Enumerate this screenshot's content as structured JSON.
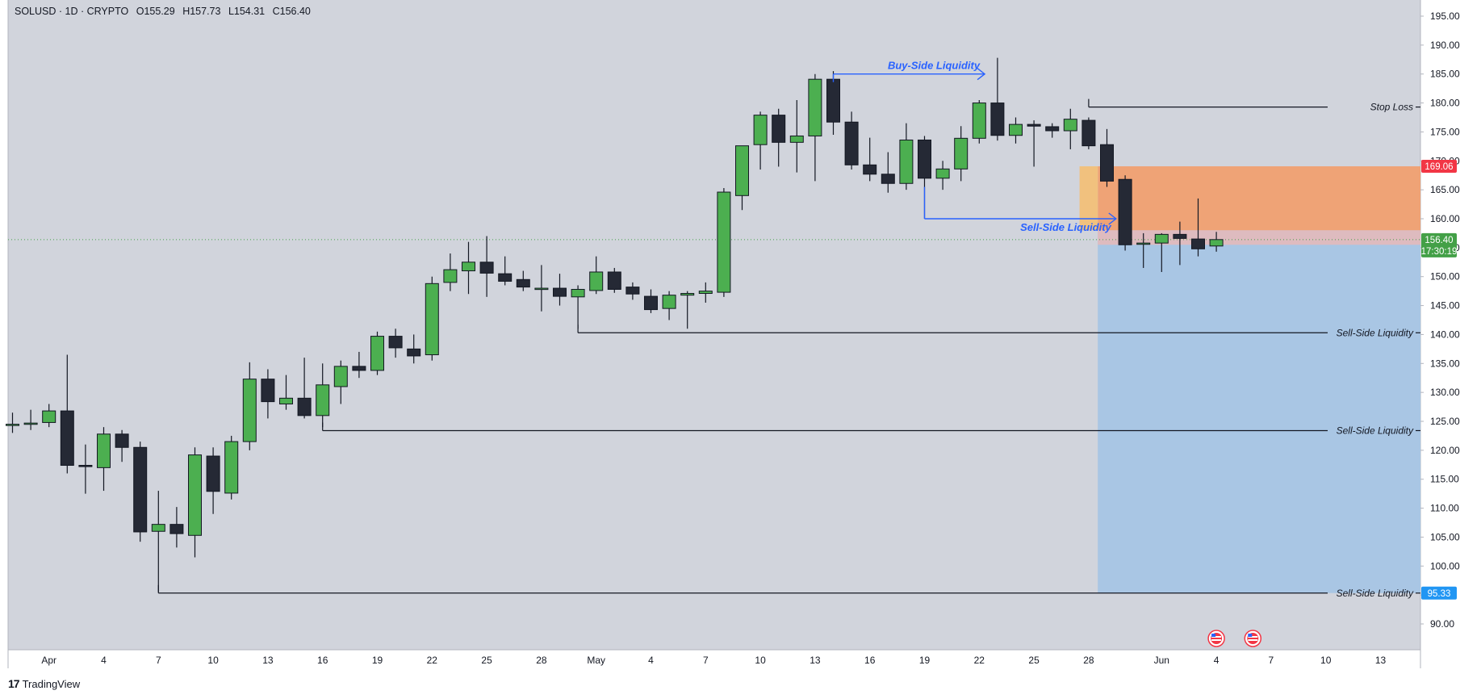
{
  "header": {
    "symbol": "SOLUSD · 1D · CRYPTO",
    "open": "O155.29",
    "high": "H157.73",
    "low": "L154.31",
    "close": "C156.40"
  },
  "footer": {
    "brand": "TradingView",
    "logo": "17"
  },
  "colors": {
    "background": "#d1d4dc",
    "up": "#4caf50",
    "down": "#252935",
    "liquidity_text": "#2962ff",
    "stop_label": "#f23645",
    "target_label": "#2196f3",
    "last_price_label": "#43a047",
    "stop_zone": "#f0a070",
    "entry_zone": "#f2c078",
    "target_zone": "#a9c6e4"
  },
  "chart_data": {
    "type": "candlestick",
    "symbol": "SOLUSD",
    "interval": "1D",
    "exchange": "CRYPTO",
    "ylim": [
      86.7,
      198.4
    ],
    "y_ticks": [
      90,
      95,
      100,
      105,
      110,
      115,
      120,
      125,
      130,
      135,
      140,
      145,
      150,
      155,
      160,
      165,
      170,
      175,
      180,
      185,
      190,
      195
    ],
    "y_tick_labels": [
      "90.00",
      "95.00",
      "100.00",
      "105.00",
      "110.00",
      "115.00",
      "120.00",
      "125.00",
      "130.00",
      "135.00",
      "140.00",
      "145.00",
      "150.00",
      "155.00",
      "160.00",
      "165.00",
      "170.00",
      "175.00",
      "180.00",
      "185.00",
      "190.00",
      "195.00"
    ],
    "x_ticks": [
      {
        "label": "Apr",
        "i": 2
      },
      {
        "label": "4",
        "i": 5
      },
      {
        "label": "7",
        "i": 8
      },
      {
        "label": "10",
        "i": 11
      },
      {
        "label": "13",
        "i": 14
      },
      {
        "label": "16",
        "i": 17
      },
      {
        "label": "19",
        "i": 20
      },
      {
        "label": "22",
        "i": 23
      },
      {
        "label": "25",
        "i": 26
      },
      {
        "label": "28",
        "i": 29
      },
      {
        "label": "May",
        "i": 32
      },
      {
        "label": "4",
        "i": 35
      },
      {
        "label": "7",
        "i": 38
      },
      {
        "label": "10",
        "i": 41
      },
      {
        "label": "13",
        "i": 44
      },
      {
        "label": "16",
        "i": 47
      },
      {
        "label": "19",
        "i": 50
      },
      {
        "label": "22",
        "i": 53
      },
      {
        "label": "25",
        "i": 56
      },
      {
        "label": "28",
        "i": 59
      },
      {
        "label": "Jun",
        "i": 63
      },
      {
        "label": "4",
        "i": 66
      },
      {
        "label": "7",
        "i": 69
      },
      {
        "label": "10",
        "i": 72
      },
      {
        "label": "13",
        "i": 75
      }
    ],
    "candles": [
      {
        "o": 124.5,
        "h": 126.5,
        "l": 123.0,
        "c": 124.5
      },
      {
        "o": 124.5,
        "h": 127.0,
        "l": 123.5,
        "c": 124.7
      },
      {
        "o": 124.8,
        "h": 128.0,
        "l": 124.0,
        "c": 126.8
      },
      {
        "o": 126.8,
        "h": 136.5,
        "l": 116.0,
        "c": 117.4
      },
      {
        "o": 117.4,
        "h": 121.0,
        "l": 112.5,
        "c": 117.3
      },
      {
        "o": 117.0,
        "h": 124.0,
        "l": 113.0,
        "c": 122.8
      },
      {
        "o": 122.8,
        "h": 123.5,
        "l": 118.0,
        "c": 120.5
      },
      {
        "o": 120.5,
        "h": 121.5,
        "l": 104.2,
        "c": 105.9
      },
      {
        "o": 106.0,
        "h": 113.0,
        "l": 95.5,
        "c": 107.2
      },
      {
        "o": 107.2,
        "h": 110.2,
        "l": 103.2,
        "c": 105.6
      },
      {
        "o": 105.3,
        "h": 120.5,
        "l": 101.5,
        "c": 119.2
      },
      {
        "o": 119.0,
        "h": 120.5,
        "l": 109.0,
        "c": 112.9
      },
      {
        "o": 112.6,
        "h": 122.5,
        "l": 111.5,
        "c": 121.5
      },
      {
        "o": 121.5,
        "h": 135.2,
        "l": 120.0,
        "c": 132.3
      },
      {
        "o": 132.3,
        "h": 134.0,
        "l": 125.5,
        "c": 128.4
      },
      {
        "o": 128.0,
        "h": 133.0,
        "l": 127.0,
        "c": 129.0
      },
      {
        "o": 129.0,
        "h": 136.0,
        "l": 125.5,
        "c": 126.0
      },
      {
        "o": 126.0,
        "h": 135.0,
        "l": 124.0,
        "c": 131.3
      },
      {
        "o": 131.0,
        "h": 135.5,
        "l": 128.0,
        "c": 134.5
      },
      {
        "o": 134.5,
        "h": 137.0,
        "l": 132.5,
        "c": 133.8
      },
      {
        "o": 133.8,
        "h": 140.5,
        "l": 133.0,
        "c": 139.7
      },
      {
        "o": 139.7,
        "h": 141.0,
        "l": 136.0,
        "c": 137.7
      },
      {
        "o": 137.5,
        "h": 140.0,
        "l": 135.0,
        "c": 136.3
      },
      {
        "o": 136.5,
        "h": 150.0,
        "l": 135.5,
        "c": 148.8
      },
      {
        "o": 149.0,
        "h": 154.0,
        "l": 147.5,
        "c": 151.2
      },
      {
        "o": 151.0,
        "h": 156.0,
        "l": 147.0,
        "c": 152.5
      },
      {
        "o": 152.5,
        "h": 157.0,
        "l": 146.5,
        "c": 150.6
      },
      {
        "o": 150.5,
        "h": 153.5,
        "l": 148.5,
        "c": 149.2
      },
      {
        "o": 149.5,
        "h": 151.0,
        "l": 147.5,
        "c": 148.2
      },
      {
        "o": 148.0,
        "h": 152.0,
        "l": 144.0,
        "c": 148.0
      },
      {
        "o": 148.0,
        "h": 150.5,
        "l": 145.0,
        "c": 146.6
      },
      {
        "o": 146.5,
        "h": 148.5,
        "l": 141.0,
        "c": 147.8
      },
      {
        "o": 147.6,
        "h": 153.5,
        "l": 147.0,
        "c": 150.8
      },
      {
        "o": 150.8,
        "h": 151.5,
        "l": 147.2,
        "c": 147.8
      },
      {
        "o": 148.2,
        "h": 149.0,
        "l": 146.0,
        "c": 147.0
      },
      {
        "o": 146.6,
        "h": 147.8,
        "l": 143.7,
        "c": 144.3
      },
      {
        "o": 144.5,
        "h": 147.5,
        "l": 142.5,
        "c": 146.8
      },
      {
        "o": 146.8,
        "h": 147.5,
        "l": 141.0,
        "c": 147.1
      },
      {
        "o": 147.1,
        "h": 149.0,
        "l": 145.5,
        "c": 147.5
      },
      {
        "o": 147.3,
        "h": 165.3,
        "l": 146.5,
        "c": 164.6
      },
      {
        "o": 164.0,
        "h": 172.5,
        "l": 161.5,
        "c": 172.6
      },
      {
        "o": 172.8,
        "h": 178.5,
        "l": 168.5,
        "c": 177.9
      },
      {
        "o": 177.9,
        "h": 179.0,
        "l": 169.0,
        "c": 173.2
      },
      {
        "o": 173.2,
        "h": 180.5,
        "l": 168.0,
        "c": 174.3
      },
      {
        "o": 174.3,
        "h": 185.0,
        "l": 166.5,
        "c": 184.1
      },
      {
        "o": 184.1,
        "h": 185.5,
        "l": 174.5,
        "c": 176.7
      },
      {
        "o": 176.7,
        "h": 178.5,
        "l": 168.5,
        "c": 169.3
      },
      {
        "o": 169.3,
        "h": 174.0,
        "l": 166.5,
        "c": 167.7
      },
      {
        "o": 167.7,
        "h": 171.5,
        "l": 164.5,
        "c": 166.1
      },
      {
        "o": 166.1,
        "h": 176.5,
        "l": 165.0,
        "c": 173.6
      },
      {
        "o": 173.6,
        "h": 174.3,
        "l": 160.0,
        "c": 167.0
      },
      {
        "o": 167.0,
        "h": 170.0,
        "l": 165.0,
        "c": 168.6
      },
      {
        "o": 168.6,
        "h": 176.0,
        "l": 166.5,
        "c": 173.9
      },
      {
        "o": 173.9,
        "h": 180.5,
        "l": 173.0,
        "c": 180.0
      },
      {
        "o": 180.0,
        "h": 187.8,
        "l": 173.5,
        "c": 174.4
      },
      {
        "o": 174.4,
        "h": 177.5,
        "l": 173.0,
        "c": 176.3
      },
      {
        "o": 176.3,
        "h": 177.0,
        "l": 169.0,
        "c": 176.0
      },
      {
        "o": 175.9,
        "h": 176.5,
        "l": 174.0,
        "c": 175.2
      },
      {
        "o": 175.2,
        "h": 179.0,
        "l": 172.0,
        "c": 177.2
      },
      {
        "o": 177.0,
        "h": 177.5,
        "l": 172.0,
        "c": 172.6
      },
      {
        "o": 172.8,
        "h": 175.5,
        "l": 165.5,
        "c": 166.5
      },
      {
        "o": 166.8,
        "h": 167.5,
        "l": 154.5,
        "c": 155.5
      },
      {
        "o": 155.6,
        "h": 157.5,
        "l": 151.5,
        "c": 155.8
      },
      {
        "o": 155.8,
        "h": 157.5,
        "l": 150.8,
        "c": 157.3
      },
      {
        "o": 157.3,
        "h": 159.5,
        "l": 152.0,
        "c": 156.6
      },
      {
        "o": 156.5,
        "h": 163.5,
        "l": 153.5,
        "c": 154.8
      },
      {
        "o": 155.29,
        "h": 157.73,
        "l": 154.31,
        "c": 156.4
      }
    ],
    "last_price": {
      "value": "156.40",
      "countdown": "17:30:19",
      "price": 156.4
    },
    "position": {
      "entry": 158.0,
      "stop": 169.06,
      "target": 95.33,
      "stop_label": "169.06",
      "target_label": "95.33",
      "entry_zone_low": 158.0,
      "entry_zone_high": 169.06,
      "start_i": 59.5
    },
    "levels": [
      {
        "text": "Stop Loss",
        "price": 179.3,
        "from_i": 59
      },
      {
        "text": "Sell-Side Liquidity",
        "price": 140.3,
        "from_i": 31
      },
      {
        "text": "Sell-Side Liquidity",
        "price": 123.4,
        "from_i": 17
      },
      {
        "text": "Sell-Side Liquidity",
        "price": 95.33,
        "from_i": 8
      }
    ],
    "liquidity_markers": [
      {
        "text": "Buy-Side Liquidity",
        "price": 185.0,
        "from_i": 45,
        "to_i": 53.3
      },
      {
        "text": "Sell-Side Liquidity",
        "price": 160.0,
        "from_i": 50,
        "to_i": 60.5,
        "label_below": true
      }
    ],
    "event_icons": [
      66,
      68
    ]
  }
}
